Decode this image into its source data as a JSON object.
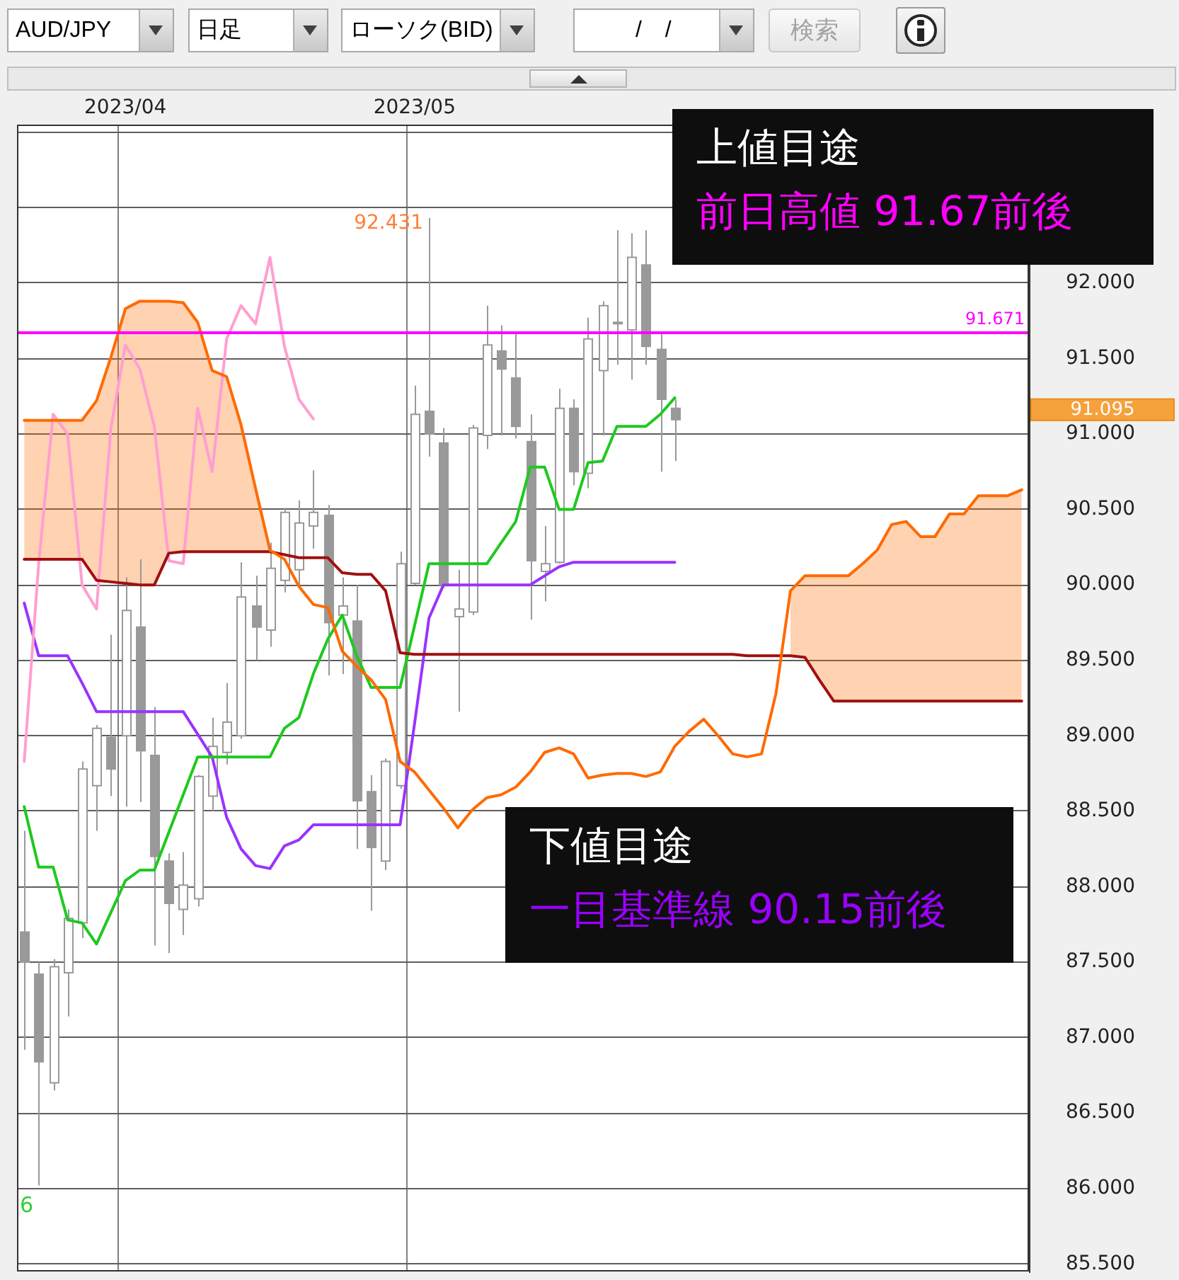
{
  "chart_data": {
    "type": "candlestick",
    "categories": [
      null,
      null,
      null,
      null,
      null,
      null,
      null,
      "2023/04",
      null,
      null,
      null,
      null,
      null,
      null,
      null,
      null,
      null,
      null,
      null,
      null,
      null,
      null,
      null,
      null,
      null,
      null,
      null,
      "2023/05",
      null,
      null,
      null,
      null,
      null,
      null,
      null,
      null,
      null,
      null,
      null,
      null,
      null,
      null,
      null,
      null,
      null,
      null,
      null,
      null,
      null,
      null,
      null,
      null,
      null,
      null,
      null,
      null,
      null,
      null,
      null,
      null,
      null,
      null,
      null,
      null,
      null,
      null,
      null,
      null,
      null,
      null
    ],
    "series": [
      {
        "type": "line",
        "color": "#ff6a00",
        "values": [
          91.09,
          91.09,
          91.09,
          91.09,
          91.09,
          91.22,
          91.51,
          91.83,
          91.88,
          91.88,
          91.88,
          91.87,
          91.74,
          91.42,
          91.38,
          91.06,
          90.64,
          90.23,
          90.17,
          89.99,
          89.87,
          89.85,
          89.56,
          89.46,
          89.37,
          89.24,
          88.83,
          88.76,
          88.64,
          88.52,
          88.39,
          88.51,
          88.59,
          88.61,
          88.66,
          88.76,
          88.89,
          88.92,
          88.88,
          88.72,
          88.74,
          88.75,
          88.75,
          88.73,
          88.76,
          88.93,
          89.03,
          89.11,
          89.0,
          88.88,
          88.86,
          88.88,
          89.28,
          89.96,
          90.06,
          90.06,
          90.06,
          90.06,
          90.14,
          90.23,
          90.4,
          90.42,
          90.32,
          90.32,
          90.47,
          90.47,
          90.59,
          90.59,
          90.59,
          90.63
        ],
        "lower": [
          90.17,
          90.17,
          90.17,
          90.17,
          90.17,
          90.03,
          90.02,
          90.01,
          90.0,
          90.0,
          90.21,
          90.22,
          90.22,
          90.22,
          90.22,
          90.22,
          90.22,
          90.22,
          null,
          null,
          null,
          null,
          null,
          null,
          null,
          null,
          null,
          null,
          null,
          null,
          null,
          null,
          null,
          null,
          null,
          null,
          null,
          null,
          null,
          null,
          null,
          null,
          null,
          null,
          null,
          null,
          null,
          null,
          null,
          null,
          null,
          null,
          null,
          89.53,
          89.52,
          89.37,
          89.23,
          89.23,
          89.23,
          89.23,
          89.23,
          89.23,
          89.23,
          89.23,
          89.23,
          89.23,
          89.23,
          89.23,
          89.23,
          89.23
        ],
        "upper": [
          91.09,
          91.09,
          91.09,
          91.09,
          91.09,
          91.22,
          91.51,
          91.83,
          91.88,
          91.88,
          91.88,
          91.87,
          91.74,
          91.42,
          91.38,
          91.06,
          90.64,
          90.23,
          null,
          null,
          null,
          null,
          null,
          null,
          null,
          null,
          null,
          null,
          null,
          null,
          null,
          null,
          null,
          null,
          null,
          null,
          null,
          null,
          null,
          null,
          null,
          null,
          null,
          null,
          null,
          null,
          null,
          null,
          null,
          null,
          null,
          null,
          null,
          89.96,
          90.06,
          90.06,
          90.06,
          90.06,
          90.14,
          90.23,
          90.4,
          90.42,
          90.32,
          90.32,
          90.47,
          90.47,
          90.59,
          90.59,
          90.59,
          90.63
        ]
      },
      {
        "type": "line",
        "color": "#a01010",
        "values": [
          90.17,
          90.17,
          90.17,
          90.17,
          90.17,
          90.03,
          90.02,
          90.01,
          90.0,
          90.0,
          90.21,
          90.22,
          90.22,
          90.22,
          90.22,
          90.22,
          90.22,
          90.22,
          90.2,
          90.18,
          90.18,
          90.18,
          90.08,
          90.07,
          90.07,
          89.96,
          89.55,
          89.54,
          89.54,
          89.54,
          89.54,
          89.54,
          89.54,
          89.54,
          89.54,
          89.54,
          89.54,
          89.54,
          89.54,
          89.54,
          89.54,
          89.54,
          89.54,
          89.54,
          89.54,
          89.54,
          89.54,
          89.54,
          89.54,
          89.54,
          89.53,
          89.53,
          89.53,
          89.53,
          89.52,
          89.37,
          89.23,
          89.23,
          89.23,
          89.23,
          89.23,
          89.23,
          89.23,
          89.23,
          89.23,
          89.23,
          89.23,
          89.23,
          89.23,
          89.23
        ]
      },
      {
        "type": "line",
        "color": "#ff9fd0",
        "values": [
          88.83,
          90.14,
          91.13,
          91.0,
          90.0,
          89.84,
          91.04,
          91.59,
          91.43,
          91.05,
          90.16,
          90.14,
          91.17,
          90.75,
          91.63,
          91.85,
          91.73,
          92.17,
          91.58,
          91.23,
          91.1,
          null,
          null,
          null,
          null,
          null,
          null,
          null,
          null,
          null,
          null,
          null,
          null,
          null,
          null,
          null,
          null,
          null,
          null,
          null,
          null,
          null,
          null,
          null,
          null,
          null,
          null,
          null,
          null,
          null,
          null,
          null,
          null,
          null,
          null,
          null,
          null,
          null,
          null,
          null,
          null,
          null,
          null,
          null,
          null,
          null,
          null,
          null,
          null,
          null
        ]
      },
      {
        "type": "line",
        "color": "#1fc91f",
        "values": [
          88.53,
          88.13,
          88.13,
          87.78,
          87.76,
          87.62,
          87.83,
          88.04,
          88.11,
          88.11,
          88.36,
          88.61,
          88.86,
          88.86,
          88.86,
          88.86,
          88.86,
          88.86,
          89.05,
          89.12,
          89.41,
          89.64,
          89.8,
          89.53,
          89.32,
          89.32,
          89.32,
          89.73,
          90.14,
          90.14,
          90.14,
          90.14,
          90.14,
          90.28,
          90.42,
          90.78,
          90.78,
          90.5,
          90.5,
          90.81,
          90.82,
          91.05,
          91.05,
          91.05,
          91.13,
          91.24,
          null,
          null,
          null,
          null,
          null,
          null,
          null,
          null,
          null,
          null,
          null,
          null,
          null,
          null,
          null,
          null,
          null,
          null,
          null,
          null,
          null,
          null,
          null,
          null
        ]
      },
      {
        "type": "line",
        "color": "#9933ff",
        "values": [
          89.88,
          89.53,
          89.53,
          89.53,
          89.35,
          89.16,
          89.16,
          89.16,
          89.16,
          89.16,
          89.16,
          89.16,
          89.01,
          88.86,
          88.46,
          88.25,
          88.14,
          88.12,
          88.27,
          88.31,
          88.41,
          88.41,
          88.41,
          88.41,
          88.41,
          88.41,
          88.41,
          89.08,
          89.78,
          90.0,
          90.0,
          90.0,
          90.0,
          90.0,
          90.0,
          90.0,
          90.06,
          90.12,
          90.15,
          90.15,
          90.15,
          90.15,
          90.15,
          90.15,
          90.15,
          90.15,
          null,
          null,
          null,
          null,
          null,
          null,
          null,
          null,
          null,
          null,
          null,
          null,
          null,
          null,
          null,
          null,
          null,
          null,
          null,
          null,
          null,
          null,
          null,
          null
        ]
      },
      {
        "colors": [
          "#999999",
          "#999999",
          "#ffffff",
          "#ffffff",
          "#ffffff",
          "#ffffff",
          "#999999",
          "#ffffff",
          "#999999",
          "#999999",
          "#999999",
          "#ffffff",
          "#ffffff",
          "#ffffff",
          "#ffffff",
          "#ffffff",
          "#999999",
          "#ffffff",
          "#ffffff",
          "#ffffff",
          "#ffffff",
          "#999999",
          "#ffffff",
          "#999999",
          "#999999",
          "#ffffff",
          "#ffffff",
          "#ffffff",
          "#999999",
          "#999999",
          "#ffffff",
          "#ffffff",
          "#ffffff",
          "#999999",
          "#999999",
          "#999999",
          "#ffffff",
          "#ffffff",
          "#999999",
          "#ffffff",
          "#ffffff",
          "#999999",
          "#ffffff",
          "#999999",
          "#999999",
          "#999999",
          null,
          null,
          null,
          null,
          null,
          null,
          null,
          null,
          null,
          null,
          null,
          null,
          null,
          null,
          null,
          null,
          null,
          null,
          null,
          null,
          null,
          null,
          null,
          null
        ],
        "ohlc": [
          [
            87.7,
            88.37,
            86.92,
            87.5
          ],
          [
            87.42,
            87.5,
            86.02,
            86.84
          ],
          [
            86.7,
            87.52,
            86.65,
            87.47
          ],
          [
            87.43,
            87.85,
            87.14,
            87.79
          ],
          [
            87.76,
            88.83,
            87.66,
            88.78
          ],
          [
            88.67,
            89.07,
            88.37,
            89.05
          ],
          [
            88.99,
            89.67,
            88.6,
            88.78
          ],
          [
            89.0,
            90.05,
            88.53,
            89.83
          ],
          [
            89.72,
            90.17,
            88.56,
            88.9
          ],
          [
            88.87,
            89.19,
            87.61,
            88.2
          ],
          [
            88.17,
            88.22,
            87.56,
            87.89
          ],
          [
            87.85,
            88.23,
            87.68,
            88.01
          ],
          [
            87.92,
            88.74,
            87.87,
            88.73
          ],
          [
            88.6,
            89.12,
            88.5,
            88.93
          ],
          [
            88.89,
            89.35,
            88.81,
            89.09
          ],
          [
            89.0,
            90.15,
            88.98,
            89.92
          ],
          [
            89.86,
            90.06,
            89.5,
            89.72
          ],
          [
            89.7,
            90.28,
            89.59,
            90.11
          ],
          [
            90.03,
            90.51,
            89.95,
            90.48
          ],
          [
            90.1,
            90.56,
            90.0,
            90.41
          ],
          [
            90.39,
            90.76,
            90.24,
            90.48
          ],
          [
            90.46,
            90.53,
            89.4,
            89.75
          ],
          [
            89.8,
            90.05,
            89.41,
            89.86
          ],
          [
            89.76,
            90.0,
            88.25,
            88.57
          ],
          [
            88.63,
            88.74,
            87.84,
            88.26
          ],
          [
            88.17,
            88.85,
            88.11,
            88.83
          ],
          [
            88.67,
            90.22,
            88.65,
            90.14
          ],
          [
            90.01,
            91.32,
            90.0,
            91.13
          ],
          [
            91.15,
            92.431,
            90.85,
            91.0
          ],
          [
            90.94,
            91.04,
            89.98,
            90.0
          ],
          [
            89.79,
            90.1,
            89.16,
            89.84
          ],
          [
            89.82,
            91.06,
            89.8,
            91.04
          ],
          [
            90.99,
            91.85,
            90.9,
            91.59
          ],
          [
            91.55,
            91.72,
            90.99,
            91.43
          ],
          [
            91.37,
            91.67,
            90.97,
            91.05
          ],
          [
            90.95,
            91.13,
            89.77,
            90.16
          ],
          [
            90.09,
            90.39,
            89.89,
            90.14
          ],
          [
            90.15,
            91.3,
            90.14,
            91.17
          ],
          [
            91.17,
            91.23,
            90.66,
            90.75
          ],
          [
            90.74,
            91.77,
            90.64,
            91.63
          ],
          [
            91.42,
            91.88,
            90.99,
            91.85
          ],
          [
            91.74,
            92.35,
            91.46,
            91.73
          ],
          [
            91.69,
            92.33,
            91.36,
            92.17
          ],
          [
            92.12,
            92.35,
            91.46,
            91.58
          ],
          [
            91.56,
            91.671,
            90.75,
            91.23
          ],
          [
            91.17,
            91.23,
            90.82,
            91.095
          ],
          null,
          null,
          null,
          null,
          null,
          null,
          null,
          null,
          null,
          null,
          null,
          null,
          null,
          null,
          null,
          null,
          null,
          null,
          null,
          null,
          null,
          null,
          null,
          null
        ]
      }
    ],
    "ylim": [
      85.45,
      93.05
    ],
    "yticks": [
      {
        "value": 85.5,
        "label": "85.500"
      },
      {
        "value": 86,
        "label": "86.000"
      },
      {
        "value": 86.5,
        "label": "86.500"
      },
      {
        "value": 87,
        "label": "87.000"
      },
      {
        "value": 87.5,
        "label": "87.500"
      },
      {
        "value": 88,
        "label": "88.000"
      },
      {
        "value": 88.5,
        "label": "88.500"
      },
      {
        "value": 89,
        "label": "89.000"
      },
      {
        "value": 89.5,
        "label": "89.500"
      },
      {
        "value": 90,
        "label": "90.000"
      },
      {
        "value": 90.5,
        "label": "90.500"
      },
      {
        "value": 91,
        "label": "91.000"
      },
      {
        "value": 91.5,
        "label": "91.500"
      },
      {
        "value": 92,
        "label": "92.000"
      },
      {
        "value": 92.5,
        "label": null
      },
      {
        "value": 93,
        "label": null
      }
    ],
    "grid": true,
    "ref_lines": [
      {
        "axis": "y",
        "value": 91.671,
        "label": "91.671",
        "color": "#ff00ff"
      }
    ],
    "annotations": [
      "AUD/JPY",
      "日足",
      "ローソク(BID)",
      "/ /",
      "検索",
      "92.431",
      "91.095",
      "6",
      "上値目途",
      "前日高値 91.67前後",
      "下値目途",
      "一目基準線 90.15前後"
    ]
  }
}
